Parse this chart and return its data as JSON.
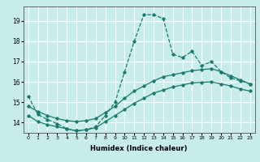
{
  "xlabel": "Humidex (Indice chaleur)",
  "background_color": "#c8ecea",
  "grid_color": "#ffffff",
  "line_color": "#1a7a6e",
  "x_ticks": [
    0,
    1,
    2,
    3,
    4,
    5,
    6,
    7,
    8,
    9,
    10,
    11,
    12,
    13,
    14,
    15,
    16,
    17,
    18,
    19,
    20,
    21,
    22,
    23
  ],
  "y_ticks": [
    14,
    15,
    16,
    17,
    18,
    19
  ],
  "y_top_label": "19",
  "xlim": [
    -0.5,
    23.5
  ],
  "ylim": [
    13.5,
    19.7
  ],
  "line1": {
    "x": [
      0,
      1,
      2,
      3,
      4,
      5,
      6,
      7,
      8,
      9,
      10,
      11,
      12,
      13,
      14,
      15,
      16,
      17,
      18,
      19,
      20,
      21,
      22,
      23
    ],
    "y": [
      15.3,
      14.4,
      14.15,
      13.95,
      13.7,
      13.6,
      13.65,
      13.8,
      14.35,
      15.0,
      16.5,
      18.0,
      19.3,
      19.3,
      19.1,
      17.35,
      17.2,
      17.5,
      16.8,
      17.0,
      16.5,
      16.2,
      16.05,
      15.9
    ],
    "linestyle": "--"
  },
  "line2": {
    "x": [
      0,
      1,
      2,
      3,
      4,
      5,
      6,
      7,
      8,
      9,
      10,
      11,
      12,
      13,
      14,
      15,
      16,
      17,
      18,
      19,
      20,
      21,
      22,
      23
    ],
    "y": [
      14.8,
      14.55,
      14.35,
      14.2,
      14.1,
      14.05,
      14.1,
      14.2,
      14.5,
      14.8,
      15.2,
      15.55,
      15.8,
      16.05,
      16.25,
      16.35,
      16.45,
      16.55,
      16.6,
      16.65,
      16.5,
      16.3,
      16.1,
      15.9
    ],
    "linestyle": "-"
  },
  "line3": {
    "x": [
      0,
      1,
      2,
      3,
      4,
      5,
      6,
      7,
      8,
      9,
      10,
      11,
      12,
      13,
      14,
      15,
      16,
      17,
      18,
      19,
      20,
      21,
      22,
      23
    ],
    "y": [
      14.35,
      14.05,
      13.9,
      13.8,
      13.7,
      13.6,
      13.65,
      13.75,
      14.05,
      14.35,
      14.65,
      14.95,
      15.2,
      15.45,
      15.6,
      15.75,
      15.85,
      15.95,
      15.98,
      16.0,
      15.9,
      15.8,
      15.65,
      15.55
    ],
    "linestyle": "-"
  },
  "marker": "D",
  "markersize": 1.8,
  "linewidth": 0.9
}
